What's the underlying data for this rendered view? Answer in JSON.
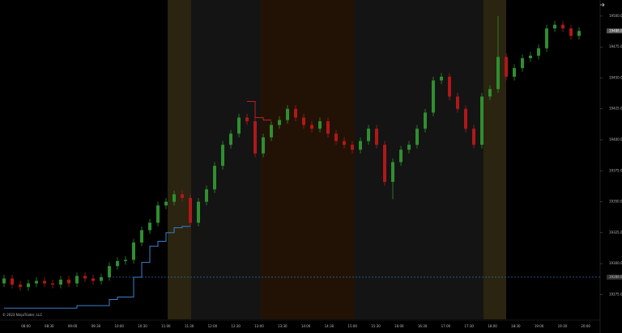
{
  "chart_data": {
    "type": "candlestick",
    "copyright": "© 2023 NinjaTrader, LLC",
    "up_color": "#2f8f2f",
    "down_color": "#b01818",
    "ylim": [
      19255,
      19513
    ],
    "yticks": [
      {
        "value": 19275,
        "label": "19275.00"
      },
      {
        "value": 19300,
        "label": "19300.00"
      },
      {
        "value": 19325,
        "label": "19325.00"
      },
      {
        "value": 19350,
        "label": "19350.00"
      },
      {
        "value": 19375,
        "label": "19375.00"
      },
      {
        "value": 19400,
        "label": "19400.00"
      },
      {
        "value": 19425,
        "label": "19425.00"
      },
      {
        "value": 19450,
        "label": "19450.00"
      },
      {
        "value": 19475,
        "label": "19475.00"
      },
      {
        "value": 19500,
        "label": "19500.00"
      }
    ],
    "xtick_labels": [
      "08:00",
      "08:30",
      "09:00",
      "09:30",
      "10:00",
      "10:30",
      "11:00",
      "11:30",
      "12:00",
      "12:30",
      "13:00",
      "13:30",
      "14:00",
      "14:30",
      "15:00",
      "15:30",
      "16:00",
      "16:30",
      "17:00",
      "17:30",
      "18:00",
      "18:30",
      "19:00",
      "19:30",
      "20:00"
    ],
    "ref_line": {
      "value": 19289,
      "label": "19289.00",
      "color": "#3a7fd0"
    },
    "last_price": {
      "value": 19488,
      "label": "19488.00"
    },
    "candles": [
      [
        19284,
        19291,
        19281,
        19288
      ],
      [
        19288,
        19291,
        19280,
        19283
      ],
      [
        19283,
        19286,
        19278,
        19281
      ],
      [
        19281,
        19287,
        19278,
        19284
      ],
      [
        19284,
        19289,
        19281,
        19286
      ],
      [
        19286,
        19289,
        19281,
        19284
      ],
      [
        19284,
        19287,
        19280,
        19283
      ],
      [
        19283,
        19290,
        19280,
        19287
      ],
      [
        19287,
        19290,
        19281,
        19284
      ],
      [
        19284,
        19293,
        19281,
        19290
      ],
      [
        19290,
        19293,
        19285,
        19288
      ],
      [
        19288,
        19291,
        19283,
        19286
      ],
      [
        19286,
        19292,
        19283,
        19289
      ],
      [
        19289,
        19301,
        19286,
        19298
      ],
      [
        19298,
        19305,
        19295,
        19302
      ],
      [
        19302,
        19306,
        19299,
        19303
      ],
      [
        19303,
        19320,
        19300,
        19317
      ],
      [
        19317,
        19330,
        19314,
        19327
      ],
      [
        19327,
        19336,
        19324,
        19333
      ],
      [
        19333,
        19350,
        19330,
        19347
      ],
      [
        19347,
        19353,
        19344,
        19350
      ],
      [
        19350,
        19359,
        19347,
        19356
      ],
      [
        19356,
        19359,
        19350,
        19353
      ],
      [
        19353,
        19356,
        19330,
        19333
      ],
      [
        19333,
        19353,
        19330,
        19350
      ],
      [
        19350,
        19363,
        19347,
        19360
      ],
      [
        19360,
        19382,
        19357,
        19379
      ],
      [
        19379,
        19399,
        19376,
        19396
      ],
      [
        19396,
        19408,
        19393,
        19405
      ],
      [
        19405,
        19421,
        19402,
        19418
      ],
      [
        19418,
        19421,
        19412,
        19415
      ],
      [
        19415,
        19418,
        19386,
        19389
      ],
      [
        19389,
        19405,
        19386,
        19402
      ],
      [
        19402,
        19415,
        19399,
        19412
      ],
      [
        19412,
        19419,
        19409,
        19416
      ],
      [
        19416,
        19428,
        19413,
        19425
      ],
      [
        19425,
        19428,
        19415,
        19418
      ],
      [
        19418,
        19421,
        19409,
        19412
      ],
      [
        19412,
        19415,
        19406,
        19409
      ],
      [
        19409,
        19418,
        19406,
        19415
      ],
      [
        19415,
        19418,
        19402,
        19405
      ],
      [
        19405,
        19408,
        19396,
        19399
      ],
      [
        19399,
        19402,
        19393,
        19396
      ],
      [
        19396,
        19399,
        19389,
        19392
      ],
      [
        19392,
        19402,
        19389,
        19399
      ],
      [
        19399,
        19412,
        19396,
        19409
      ],
      [
        19409,
        19412,
        19393,
        19396
      ],
      [
        19396,
        19399,
        19363,
        19366
      ],
      [
        19366,
        19385,
        19352,
        19382
      ],
      [
        19382,
        19395,
        19379,
        19392
      ],
      [
        19392,
        19399,
        19389,
        19396
      ],
      [
        19396,
        19412,
        19393,
        19409
      ],
      [
        19409,
        19425,
        19406,
        19422
      ],
      [
        19422,
        19451,
        19419,
        19448
      ],
      [
        19448,
        19454,
        19445,
        19451
      ],
      [
        19451,
        19454,
        19432,
        19435
      ],
      [
        19435,
        19438,
        19422,
        19425
      ],
      [
        19425,
        19428,
        19406,
        19409
      ],
      [
        19409,
        19412,
        19393,
        19396
      ],
      [
        19396,
        19438,
        19393,
        19435
      ],
      [
        19435,
        19444,
        19432,
        19441
      ],
      [
        19441,
        19500,
        19438,
        19467
      ],
      [
        19467,
        19470,
        19448,
        19451
      ],
      [
        19451,
        19461,
        19448,
        19458
      ],
      [
        19458,
        19469,
        19455,
        19466
      ],
      [
        19466,
        19471,
        19463,
        19468
      ],
      [
        19468,
        19477,
        19465,
        19474
      ],
      [
        19474,
        19493,
        19471,
        19490
      ],
      [
        19490,
        19496,
        19487,
        19493
      ],
      [
        19493,
        19496,
        19487,
        19490
      ],
      [
        19490,
        19493,
        19481,
        19484
      ],
      [
        19484,
        19491,
        19481,
        19488
      ]
    ],
    "lines": [
      {
        "color": "#3a7fd0",
        "values": [
          19264,
          19264,
          19264,
          19264,
          19264,
          19264,
          19264,
          19264,
          19264,
          19266,
          19266,
          19266,
          19266,
          19271,
          19273,
          19273,
          19289,
          19301,
          19314,
          19318,
          19325,
          19329,
          19330,
          19330,
          null,
          null,
          null,
          null,
          null,
          null,
          null,
          null,
          null,
          null,
          null,
          null,
          null,
          null,
          null,
          null,
          null,
          null,
          null,
          null,
          null,
          null,
          null,
          null,
          null,
          null,
          null,
          null,
          null,
          null,
          null,
          null,
          null,
          null,
          null,
          null,
          null,
          null,
          null,
          null,
          null,
          null,
          null,
          null,
          null,
          null,
          null,
          null
        ]
      },
      {
        "color": "#c0201c",
        "values": [
          null,
          null,
          null,
          null,
          null,
          null,
          null,
          null,
          null,
          null,
          null,
          null,
          null,
          null,
          null,
          null,
          null,
          null,
          null,
          null,
          null,
          null,
          null,
          null,
          null,
          null,
          null,
          null,
          null,
          null,
          19431,
          19418,
          19416,
          19416,
          null,
          null,
          null,
          null,
          null,
          null,
          null,
          null,
          null,
          null,
          null,
          null,
          null,
          null,
          null,
          null,
          null,
          null,
          null,
          null,
          null,
          null,
          null,
          null,
          null,
          null,
          null,
          null,
          null,
          null,
          null,
          null,
          null,
          null,
          null,
          null,
          null,
          null
        ]
      }
    ]
  }
}
